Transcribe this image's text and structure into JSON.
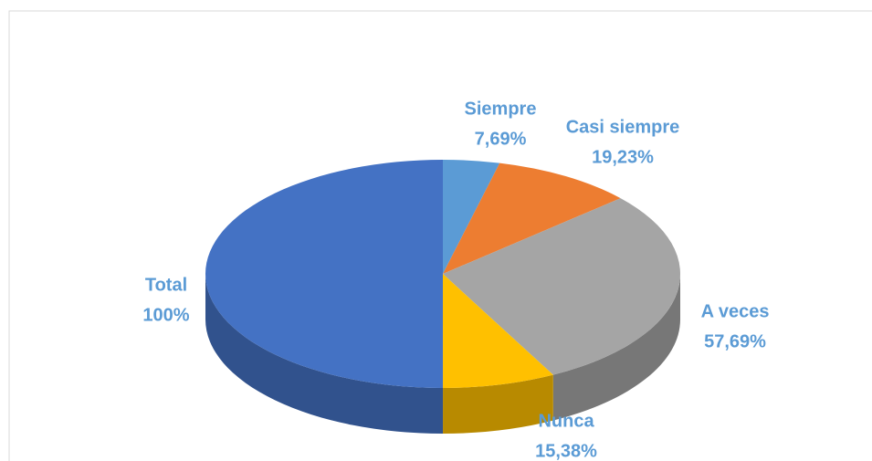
{
  "chart_data": {
    "type": "pie3d",
    "categories": [
      "Siempre",
      "Casi siempre",
      "A veces",
      "Nunca",
      "Total"
    ],
    "values": [
      7.69,
      19.23,
      57.69,
      15.38,
      100
    ],
    "value_labels": [
      "7,69%",
      "19,23%",
      "57,69%",
      "15,38%",
      "100%"
    ],
    "colors": [
      "#5b9bd5",
      "#ed7d31",
      "#a5a5a5",
      "#ffc000",
      "#4472c4"
    ]
  }
}
